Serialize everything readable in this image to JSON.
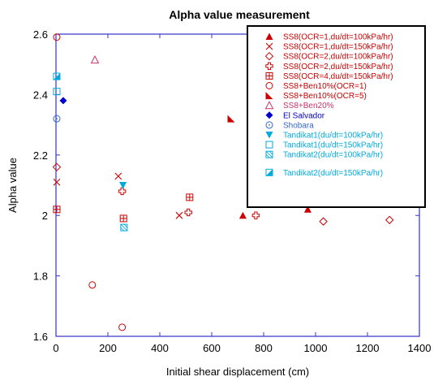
{
  "chart_data": {
    "type": "scatter",
    "title": "Alpha value measurement",
    "xlabel": "Initial shear displacement (cm)",
    "ylabel": "Alpha value",
    "xlim": [
      0,
      1400
    ],
    "ylim": [
      1.6,
      2.6
    ],
    "xticks": [
      0,
      200,
      400,
      600,
      800,
      1000,
      1200,
      1400
    ],
    "yticks": [
      1.6,
      1.8,
      2.0,
      2.2,
      2.4,
      2.6
    ],
    "xtick_labels": [
      "0",
      "200",
      "400",
      "600",
      "800",
      "1000",
      "1200",
      "1400"
    ],
    "ytick_labels": [
      "1.6",
      "1.8",
      "2",
      "2.2",
      "2.4",
      "2.6"
    ],
    "grid": false,
    "legend_position": "top-right",
    "series": [
      {
        "name": "SS8(OCR=1,du/dt=100kPa/hr)",
        "marker": "triangle-filled",
        "color": "#cc0000",
        "points": [
          [
            720,
            2.0
          ],
          [
            970,
            2.02
          ]
        ]
      },
      {
        "name": "SS8(OCR=1,du/dt=150kPa/hr)",
        "marker": "x",
        "color": "#cc0000",
        "points": [
          [
            3,
            2.11
          ],
          [
            240,
            2.13
          ],
          [
            475,
            2.0
          ]
        ]
      },
      {
        "name": "SS8(OCR=2,du/dt=100kPa/hr)",
        "marker": "diamond-open",
        "color": "#cc0000",
        "points": [
          [
            3,
            2.16
          ],
          [
            1030,
            1.98
          ],
          [
            1285,
            1.985
          ]
        ]
      },
      {
        "name": "SS8(OCR=2,du/dt=150kPa/hr)",
        "marker": "cross-open",
        "color": "#cc0000",
        "points": [
          [
            255,
            2.08
          ],
          [
            510,
            2.01
          ],
          [
            770,
            2.0
          ]
        ]
      },
      {
        "name": "SS8(OCR=4,du/dt=150kPa/hr)",
        "marker": "square-plus",
        "color": "#cc0000",
        "points": [
          [
            3,
            2.02
          ],
          [
            260,
            1.99
          ],
          [
            515,
            2.06
          ]
        ]
      },
      {
        "name": "SS8+Ben10%(OCR=1)",
        "marker": "circle-open",
        "color": "#cc0000",
        "points": [
          [
            3,
            2.59
          ],
          [
            140,
            1.77
          ],
          [
            255,
            1.63
          ]
        ]
      },
      {
        "name": "SS8+Ben10%(OCR=5)",
        "marker": "half-triangle",
        "color": "#cc0000",
        "points": [
          [
            675,
            2.32
          ]
        ]
      },
      {
        "name": "SS8+Ben20%",
        "marker": "triangle-open",
        "color": "#cc3366",
        "points": [
          [
            150,
            2.515
          ]
        ]
      },
      {
        "name": "El Salvador",
        "marker": "diamond-filled",
        "color": "#0000cc",
        "points": [
          [
            28,
            2.38
          ]
        ]
      },
      {
        "name": "Shobara",
        "marker": "circle-dot",
        "color": "#3366cc",
        "points": [
          [
            3,
            2.32
          ]
        ]
      },
      {
        "name": "Tandikat1(du/dt=100kPa/hr)",
        "marker": "triangle-down-filled",
        "color": "#00aadd",
        "points": [
          [
            258,
            2.1
          ]
        ]
      },
      {
        "name": "Tandikat1(du/dt=150kPa/hr)",
        "marker": "square-open",
        "color": "#00aadd",
        "points": [
          [
            3,
            2.41
          ]
        ]
      },
      {
        "name": "Tandikat2(du/dt=100kPa/hr)",
        "marker": "square-hatched",
        "color": "#00aadd",
        "points": [
          [
            262,
            1.96
          ]
        ]
      },
      {
        "name": "Tandikat2(du/dt=150kPa/hr)",
        "marker": "square-half",
        "color": "#00aadd",
        "points": [
          [
            3,
            2.46
          ]
        ]
      }
    ]
  }
}
